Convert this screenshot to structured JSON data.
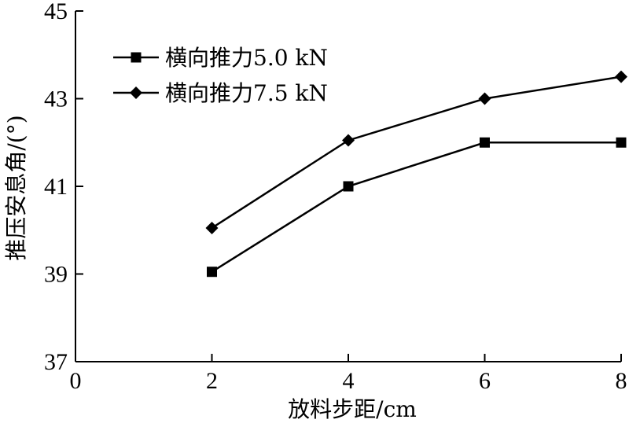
{
  "chart_data": {
    "type": "line",
    "title": "",
    "xlabel": "放料步距/cm",
    "ylabel": "推压安息角/(°)",
    "xlim": [
      0,
      8
    ],
    "ylim": [
      37,
      45
    ],
    "xticks": [
      "0",
      "2",
      "4",
      "6",
      "8"
    ],
    "yticks": [
      "37",
      "39",
      "41",
      "43",
      "45"
    ],
    "grid": false,
    "legend_position": "top-left",
    "x": [
      2,
      4,
      6,
      8
    ],
    "series": [
      {
        "name": "横向推力5.0 kN",
        "marker": "square",
        "values": [
          39.05,
          41.0,
          42.0,
          42.0
        ]
      },
      {
        "name": "横向推力7.5 kN",
        "marker": "diamond",
        "values": [
          40.05,
          42.05,
          43.0,
          43.5
        ]
      }
    ],
    "colors": {
      "line": "#000000",
      "axis": "#000000",
      "background": "#ffffff"
    }
  }
}
